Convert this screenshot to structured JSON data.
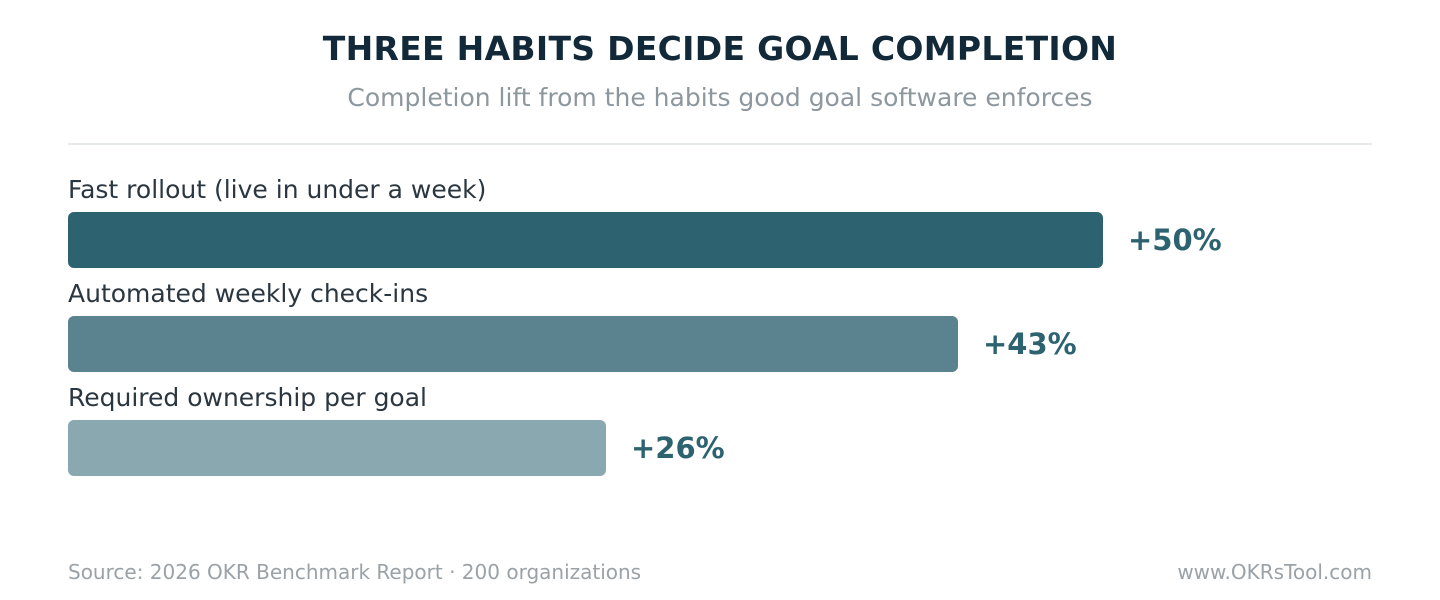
{
  "chart_data": {
    "type": "bar",
    "orientation": "horizontal",
    "title": "THREE HABITS DECIDE GOAL COMPLETION",
    "subtitle": "Completion lift from the habits good goal software enforces",
    "categories": [
      "Fast rollout (live in under a week)",
      "Automated weekly check-ins",
      "Required ownership per goal"
    ],
    "values": [
      50,
      43,
      26
    ],
    "value_labels": [
      "+50%",
      "+43%",
      "+26%"
    ],
    "unit": "%",
    "xlim": [
      0,
      63
    ],
    "grid": false,
    "colors": [
      "#2d6270",
      "#5b838f",
      "#8aa8b0"
    ]
  },
  "footer": {
    "source": "Source: 2026 OKR Benchmark Report · 200 organizations",
    "website": "www.OKRsTool.com"
  }
}
